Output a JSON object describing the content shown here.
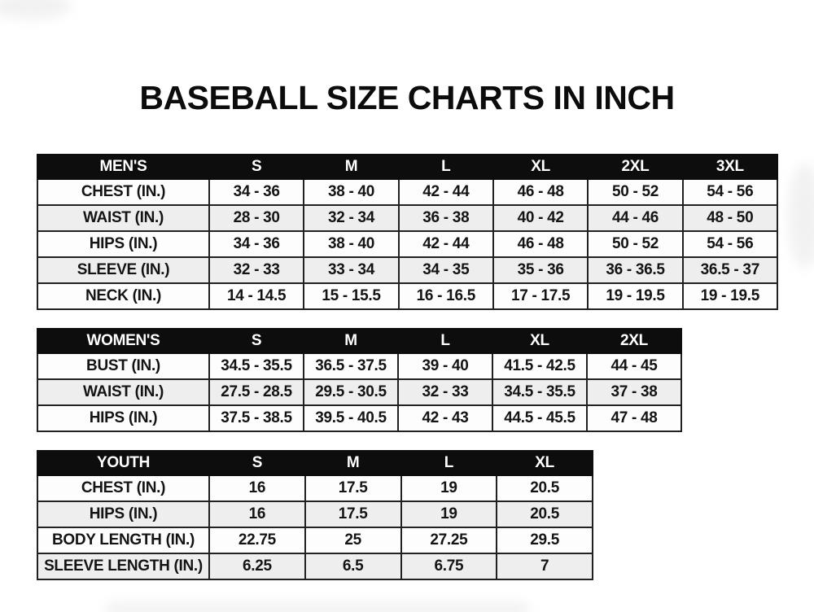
{
  "page": {
    "title": "BASEBALL SIZE CHARTS IN INCH"
  },
  "colors": {
    "header_bg": "#0d0d0d",
    "header_text": "#ffffff",
    "row_bg": "#fdfdfd",
    "row_alt_bg": "#eeeeee",
    "border": "#212121",
    "text": "#141414",
    "page_bg": "#ffffff"
  },
  "tables": [
    {
      "name": "mens",
      "header": [
        "MEN'S",
        "S",
        "M",
        "L",
        "XL",
        "2XL",
        "3XL"
      ],
      "rows": [
        [
          "CHEST (IN.)",
          "34 - 36",
          "38 - 40",
          "42 - 44",
          "46 - 48",
          "50 - 52",
          "54 - 56"
        ],
        [
          "WAIST (IN.)",
          "28 - 30",
          "32 - 34",
          "36 - 38",
          "40 - 42",
          "44 - 46",
          "48 - 50"
        ],
        [
          "HIPS (IN.)",
          "34 - 36",
          "38 - 40",
          "42 - 44",
          "46 - 48",
          "50 - 52",
          "54 - 56"
        ],
        [
          "SLEEVE (IN.)",
          "32 - 33",
          "33 - 34",
          "34 - 35",
          "35 - 36",
          "36 - 36.5",
          "36.5 - 37"
        ],
        [
          "NECK (IN.)",
          "14 - 14.5",
          "15 - 15.5",
          "16 - 16.5",
          "17 - 17.5",
          "19 - 19.5",
          "19 - 19.5"
        ]
      ]
    },
    {
      "name": "womens",
      "header": [
        "WOMEN'S",
        "S",
        "M",
        "L",
        "XL",
        "2XL"
      ],
      "rows": [
        [
          "BUST (IN.)",
          "34.5 - 35.5",
          "36.5 - 37.5",
          "39 - 40",
          "41.5 - 42.5",
          "44 - 45"
        ],
        [
          "WAIST (IN.)",
          "27.5 - 28.5",
          "29.5 - 30.5",
          "32 - 33",
          "34.5 - 35.5",
          "37 - 38"
        ],
        [
          "HIPS (IN.)",
          "37.5 - 38.5",
          "39.5 - 40.5",
          "42 - 43",
          "44.5 - 45.5",
          "47 - 48"
        ]
      ]
    },
    {
      "name": "youth",
      "header": [
        "YOUTH",
        "S",
        "M",
        "L",
        "XL"
      ],
      "rows": [
        [
          "CHEST (IN.)",
          "16",
          "17.5",
          "19",
          "20.5"
        ],
        [
          "HIPS (IN.)",
          "16",
          "17.5",
          "19",
          "20.5"
        ],
        [
          "BODY LENGTH (IN.)",
          "22.75",
          "25",
          "27.25",
          "29.5"
        ],
        [
          "SLEEVE LENGTH (IN.)",
          "6.25",
          "6.5",
          "6.75",
          "7"
        ]
      ]
    }
  ]
}
